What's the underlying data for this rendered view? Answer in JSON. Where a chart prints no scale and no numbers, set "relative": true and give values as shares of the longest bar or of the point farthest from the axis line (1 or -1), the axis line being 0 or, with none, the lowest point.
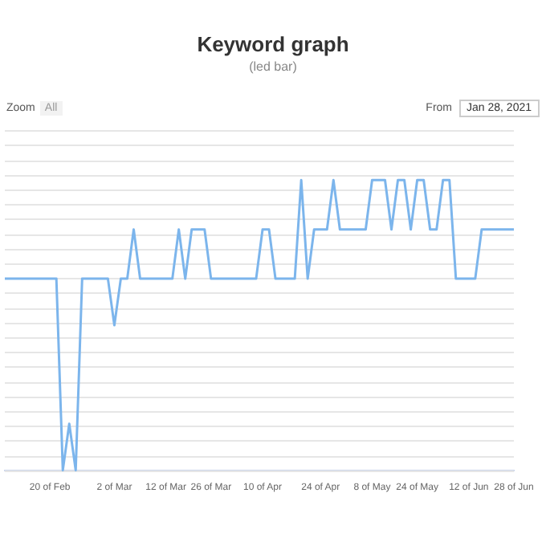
{
  "chart_data": {
    "type": "line",
    "title": "Keyword graph",
    "subtitle": "(led bar)",
    "annotations": [
      "Zoom",
      "All",
      "From",
      "Jan 28, 2021"
    ],
    "categories": [
      null,
      null,
      null,
      null,
      null,
      null,
      null,
      "20 of Feb",
      null,
      null,
      null,
      null,
      null,
      null,
      null,
      null,
      null,
      "2 of Mar",
      null,
      null,
      null,
      null,
      null,
      null,
      null,
      "12 of Mar",
      null,
      null,
      null,
      null,
      null,
      null,
      "26 of Mar",
      null,
      null,
      null,
      null,
      null,
      null,
      null,
      "10 of Apr",
      null,
      null,
      null,
      null,
      null,
      null,
      null,
      null,
      "24 of Apr",
      null,
      null,
      null,
      null,
      null,
      null,
      null,
      "8 of May",
      null,
      null,
      null,
      null,
      null,
      null,
      "24 of May",
      null,
      null,
      null,
      null,
      null,
      null,
      null,
      "12 of Jun",
      null,
      null,
      null,
      null,
      null,
      null,
      "28 of Jun"
    ],
    "series": [
      {
        "color": "#7cb5ec",
        "values": [
          0.66,
          0.66,
          0.66,
          0.66,
          0.66,
          0.66,
          0.66,
          0.66,
          0.66,
          0,
          0.16,
          0,
          0.66,
          0.66,
          0.66,
          0.66,
          0.66,
          0.5,
          0.66,
          0.66,
          0.83,
          0.66,
          0.66,
          0.66,
          0.66,
          0.66,
          0.66,
          0.83,
          0.66,
          0.83,
          0.83,
          0.83,
          0.66,
          0.66,
          0.66,
          0.66,
          0.66,
          0.66,
          0.66,
          0.66,
          0.83,
          0.83,
          0.66,
          0.66,
          0.66,
          0.66,
          1,
          0.66,
          0.83,
          0.83,
          0.83,
          1,
          0.83,
          0.83,
          0.83,
          0.83,
          0.83,
          1,
          1,
          1,
          0.83,
          1,
          1,
          0.83,
          1,
          1,
          0.83,
          0.83,
          1,
          1,
          0.66,
          0.66,
          0.66,
          0.66,
          0.83,
          0.83,
          0.83,
          0.83,
          0.83,
          0.83
        ]
      }
    ],
    "relative": true,
    "grid": "y",
    "legend": false,
    "marker": "none",
    "line_style": "solid"
  }
}
